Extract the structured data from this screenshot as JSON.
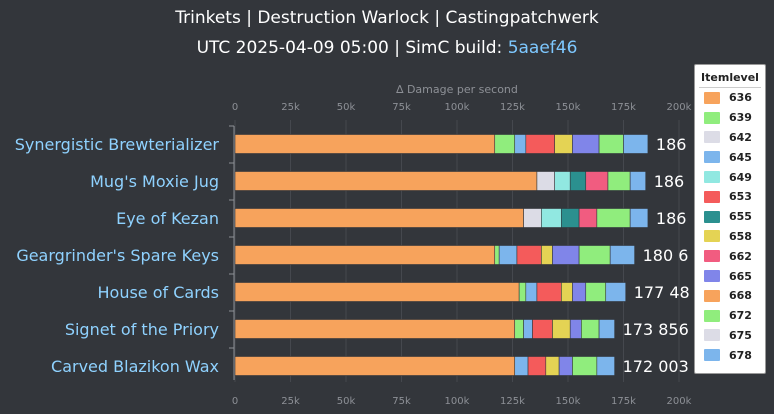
{
  "title_line1": "Trinkets | Destruction Warlock | Castingpatchwerk",
  "title_line2_prefix": "UTC 2025-04-09 05:00 | SimC build: ",
  "title_line2_build": "5aaef46",
  "legend_title": "Itemlevel",
  "chart_data": {
    "type": "bar",
    "orientation": "horizontal",
    "stacked": true,
    "xlabel": "∆ Damage per second",
    "xlim": [
      0,
      200000
    ],
    "ticks": [
      {
        "value": 0,
        "label": "0"
      },
      {
        "value": 25000,
        "label": "25k"
      },
      {
        "value": 50000,
        "label": "50k"
      },
      {
        "value": 75000,
        "label": "75k"
      },
      {
        "value": 100000,
        "label": "100k"
      },
      {
        "value": 125000,
        "label": "125k"
      },
      {
        "value": 150000,
        "label": "150k"
      },
      {
        "value": 175000,
        "label": "175k"
      },
      {
        "value": 200000,
        "label": "200k"
      }
    ],
    "grid": true,
    "legend_position": "right",
    "item_levels": [
      {
        "level": "636",
        "color": "#f7a35c"
      },
      {
        "level": "639",
        "color": "#90ed7d"
      },
      {
        "level": "642",
        "color": "#dcdce6"
      },
      {
        "level": "645",
        "color": "#7cb5ec"
      },
      {
        "level": "649",
        "color": "#91e8e1"
      },
      {
        "level": "653",
        "color": "#f45b5b"
      },
      {
        "level": "655",
        "color": "#2b908f"
      },
      {
        "level": "658",
        "color": "#e4d354"
      },
      {
        "level": "662",
        "color": "#f15c80"
      },
      {
        "level": "665",
        "color": "#8085e9"
      },
      {
        "level": "668",
        "color": "#f7a35c"
      },
      {
        "level": "672",
        "color": "#90ed7d"
      },
      {
        "level": "675",
        "color": "#dcdce6"
      },
      {
        "level": "678",
        "color": "#7cb5ec"
      }
    ],
    "bars": [
      {
        "name": "Synergistic Brewterializer",
        "total_label": "186",
        "segments": [
          {
            "level": "636",
            "value": 117000
          },
          {
            "level": "639",
            "value": 9000
          },
          {
            "level": "645",
            "value": 5000
          },
          {
            "level": "653",
            "value": 13000
          },
          {
            "level": "658",
            "value": 8000
          },
          {
            "level": "665",
            "value": 12000
          },
          {
            "level": "672",
            "value": 11000
          },
          {
            "level": "678",
            "value": 11000
          }
        ]
      },
      {
        "name": "Mug's Moxie Jug",
        "total_label": "186",
        "segments": [
          {
            "level": "636",
            "value": 136000
          },
          {
            "level": "642",
            "value": 8000
          },
          {
            "level": "649",
            "value": 7000
          },
          {
            "level": "655",
            "value": 7000
          },
          {
            "level": "662",
            "value": 10000
          },
          {
            "level": "672",
            "value": 10000
          },
          {
            "level": "678",
            "value": 7000
          }
        ]
      },
      {
        "name": "Eye of Kezan",
        "total_label": "186",
        "segments": [
          {
            "level": "636",
            "value": 130000
          },
          {
            "level": "642",
            "value": 8000
          },
          {
            "level": "649",
            "value": 9000
          },
          {
            "level": "655",
            "value": 8000
          },
          {
            "level": "662",
            "value": 8000
          },
          {
            "level": "672",
            "value": 15000
          },
          {
            "level": "678",
            "value": 8000
          }
        ]
      },
      {
        "name": "Geargrinder's Spare Keys",
        "total_label": "180 6",
        "segments": [
          {
            "level": "636",
            "value": 117000
          },
          {
            "level": "639",
            "value": 2000
          },
          {
            "level": "645",
            "value": 8000
          },
          {
            "level": "653",
            "value": 11000
          },
          {
            "level": "658",
            "value": 5000
          },
          {
            "level": "665",
            "value": 12000
          },
          {
            "level": "672",
            "value": 14000
          },
          {
            "level": "678",
            "value": 11000
          }
        ]
      },
      {
        "name": "House of Cards",
        "total_label": "177 48",
        "segments": [
          {
            "level": "636",
            "value": 128000
          },
          {
            "level": "639",
            "value": 3000
          },
          {
            "level": "645",
            "value": 5000
          },
          {
            "level": "653",
            "value": 11000
          },
          {
            "level": "658",
            "value": 5000
          },
          {
            "level": "665",
            "value": 6000
          },
          {
            "level": "672",
            "value": 9000
          },
          {
            "level": "678",
            "value": 9000
          }
        ]
      },
      {
        "name": "Signet of the Priory",
        "total_label": "173 856",
        "segments": [
          {
            "level": "636",
            "value": 126000
          },
          {
            "level": "639",
            "value": 4000
          },
          {
            "level": "645",
            "value": 4000
          },
          {
            "level": "653",
            "value": 9000
          },
          {
            "level": "658",
            "value": 8000
          },
          {
            "level": "665",
            "value": 5000
          },
          {
            "level": "672",
            "value": 8000
          },
          {
            "level": "678",
            "value": 7000
          }
        ]
      },
      {
        "name": "Carved Blazikon Wax",
        "total_label": "172 003",
        "segments": [
          {
            "level": "636",
            "value": 126000
          },
          {
            "level": "645",
            "value": 6000
          },
          {
            "level": "653",
            "value": 8000
          },
          {
            "level": "658",
            "value": 6000
          },
          {
            "level": "665",
            "value": 6000
          },
          {
            "level": "672",
            "value": 11000
          },
          {
            "level": "678",
            "value": 8000
          }
        ]
      }
    ]
  }
}
